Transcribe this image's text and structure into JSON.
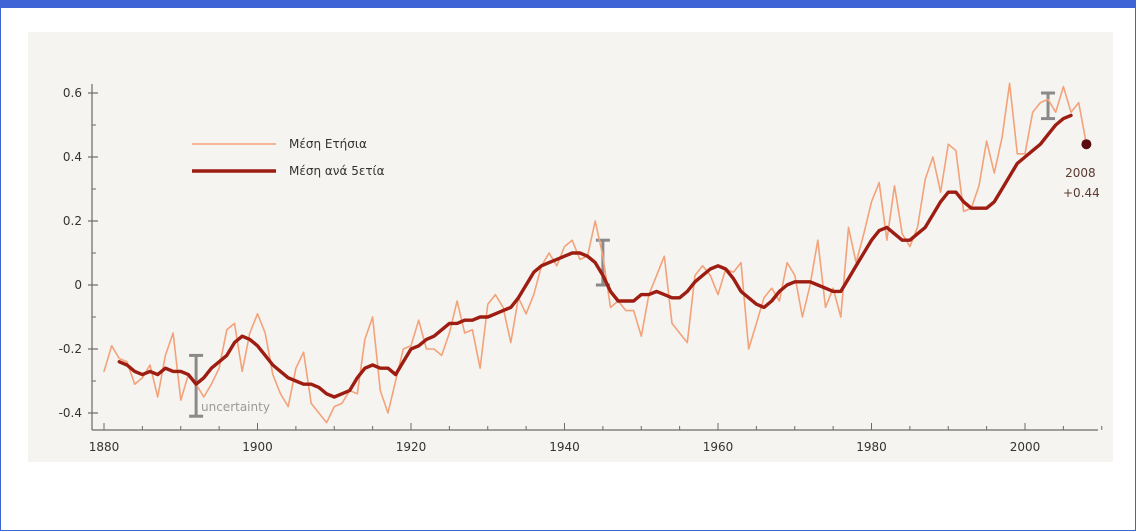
{
  "chart_data": {
    "type": "line",
    "title": "",
    "xlabel": "",
    "ylabel": "",
    "xlim": [
      1880,
      2010
    ],
    "ylim": [
      -0.43,
      0.65
    ],
    "x_ticks": [
      1880,
      1900,
      1920,
      1940,
      1960,
      1980,
      2000
    ],
    "x_tick_labels": [
      "1880",
      "1900",
      "1920",
      "1940",
      "1960",
      "1980",
      "2000"
    ],
    "y_ticks": [
      -0.4,
      -0.2,
      0,
      0.2,
      0.4,
      0.6
    ],
    "y_tick_labels": [
      "-0.4",
      "-0.2",
      "0",
      "0.2",
      "0.4",
      "0.6"
    ],
    "grid": false,
    "legend_position": "top-left",
    "series": [
      {
        "name": "Μέση Ετήσια",
        "color": "#f3a27a",
        "x": [
          1880,
          1881,
          1882,
          1883,
          1884,
          1885,
          1886,
          1887,
          1888,
          1889,
          1890,
          1891,
          1892,
          1893,
          1894,
          1895,
          1896,
          1897,
          1898,
          1899,
          1900,
          1901,
          1902,
          1903,
          1904,
          1905,
          1906,
          1907,
          1908,
          1909,
          1910,
          1911,
          1912,
          1913,
          1914,
          1915,
          1916,
          1917,
          1918,
          1919,
          1920,
          1921,
          1922,
          1923,
          1924,
          1925,
          1926,
          1927,
          1928,
          1929,
          1930,
          1931,
          1932,
          1933,
          1934,
          1935,
          1936,
          1937,
          1938,
          1939,
          1940,
          1941,
          1942,
          1943,
          1944,
          1945,
          1946,
          1947,
          1948,
          1949,
          1950,
          1951,
          1952,
          1953,
          1954,
          1955,
          1956,
          1957,
          1958,
          1959,
          1960,
          1961,
          1962,
          1963,
          1964,
          1965,
          1966,
          1967,
          1968,
          1969,
          1970,
          1971,
          1972,
          1973,
          1974,
          1975,
          1976,
          1977,
          1978,
          1979,
          1980,
          1981,
          1982,
          1983,
          1984,
          1985,
          1986,
          1987,
          1988,
          1989,
          1990,
          1991,
          1992,
          1993,
          1994,
          1995,
          1996,
          1997,
          1998,
          1999,
          2000,
          2001,
          2002,
          2003,
          2004,
          2005,
          2006,
          2007,
          2008
        ],
        "values": [
          -0.27,
          -0.19,
          -0.23,
          -0.24,
          -0.31,
          -0.29,
          -0.25,
          -0.35,
          -0.22,
          -0.15,
          -0.36,
          -0.28,
          -0.31,
          -0.35,
          -0.31,
          -0.26,
          -0.14,
          -0.12,
          -0.27,
          -0.15,
          -0.09,
          -0.15,
          -0.28,
          -0.34,
          -0.38,
          -0.26,
          -0.21,
          -0.37,
          -0.4,
          -0.43,
          -0.38,
          -0.37,
          -0.33,
          -0.34,
          -0.17,
          -0.1,
          -0.33,
          -0.4,
          -0.3,
          -0.2,
          -0.19,
          -0.11,
          -0.2,
          -0.2,
          -0.22,
          -0.15,
          -0.05,
          -0.15,
          -0.14,
          -0.26,
          -0.06,
          -0.03,
          -0.07,
          -0.18,
          -0.04,
          -0.09,
          -0.03,
          0.06,
          0.1,
          0.06,
          0.12,
          0.14,
          0.08,
          0.09,
          0.2,
          0.09,
          -0.07,
          -0.05,
          -0.08,
          -0.08,
          -0.16,
          -0.03,
          0.03,
          0.09,
          -0.12,
          -0.15,
          -0.18,
          0.03,
          0.06,
          0.03,
          -0.03,
          0.05,
          0.04,
          0.07,
          -0.2,
          -0.12,
          -0.04,
          -0.01,
          -0.05,
          0.07,
          0.03,
          -0.1,
          0.0,
          0.14,
          -0.07,
          -0.01,
          -0.1,
          0.18,
          0.07,
          0.16,
          0.26,
          0.32,
          0.14,
          0.31,
          0.16,
          0.12,
          0.18,
          0.33,
          0.4,
          0.29,
          0.44,
          0.42,
          0.23,
          0.24,
          0.31,
          0.45,
          0.35,
          0.46,
          0.63,
          0.41,
          0.41,
          0.54,
          0.57,
          0.58,
          0.54,
          0.62,
          0.54,
          0.57,
          0.44
        ]
      },
      {
        "name": "Μέση ανά 5ετία",
        "color": "#9e1d12",
        "x": [
          1882,
          1883,
          1884,
          1885,
          1886,
          1887,
          1888,
          1889,
          1890,
          1891,
          1892,
          1893,
          1894,
          1895,
          1896,
          1897,
          1898,
          1899,
          1900,
          1901,
          1902,
          1903,
          1904,
          1905,
          1906,
          1907,
          1908,
          1909,
          1910,
          1911,
          1912,
          1913,
          1914,
          1915,
          1916,
          1917,
          1918,
          1919,
          1920,
          1921,
          1922,
          1923,
          1924,
          1925,
          1926,
          1927,
          1928,
          1929,
          1930,
          1931,
          1932,
          1933,
          1934,
          1935,
          1936,
          1937,
          1938,
          1939,
          1940,
          1941,
          1942,
          1943,
          1944,
          1945,
          1946,
          1947,
          1948,
          1949,
          1950,
          1951,
          1952,
          1953,
          1954,
          1955,
          1956,
          1957,
          1958,
          1959,
          1960,
          1961,
          1962,
          1963,
          1964,
          1965,
          1966,
          1967,
          1968,
          1969,
          1970,
          1971,
          1972,
          1973,
          1974,
          1975,
          1976,
          1977,
          1978,
          1979,
          1980,
          1981,
          1982,
          1983,
          1984,
          1985,
          1986,
          1987,
          1988,
          1989,
          1990,
          1991,
          1992,
          1993,
          1994,
          1995,
          1996,
          1997,
          1998,
          1999,
          2000,
          2001,
          2002,
          2003,
          2004,
          2005,
          2006
        ],
        "values": [
          -0.24,
          -0.25,
          -0.27,
          -0.28,
          -0.27,
          -0.28,
          -0.26,
          -0.27,
          -0.27,
          -0.28,
          -0.31,
          -0.29,
          -0.26,
          -0.24,
          -0.22,
          -0.18,
          -0.16,
          -0.17,
          -0.19,
          -0.22,
          -0.25,
          -0.27,
          -0.29,
          -0.3,
          -0.31,
          -0.31,
          -0.32,
          -0.34,
          -0.35,
          -0.34,
          -0.33,
          -0.29,
          -0.26,
          -0.25,
          -0.26,
          -0.26,
          -0.28,
          -0.24,
          -0.2,
          -0.19,
          -0.17,
          -0.16,
          -0.14,
          -0.12,
          -0.12,
          -0.11,
          -0.11,
          -0.1,
          -0.1,
          -0.09,
          -0.08,
          -0.07,
          -0.04,
          0.0,
          0.04,
          0.06,
          0.07,
          0.08,
          0.09,
          0.1,
          0.1,
          0.09,
          0.07,
          0.03,
          -0.02,
          -0.05,
          -0.05,
          -0.05,
          -0.03,
          -0.03,
          -0.02,
          -0.03,
          -0.04,
          -0.04,
          -0.02,
          0.01,
          0.03,
          0.05,
          0.06,
          0.05,
          0.02,
          -0.02,
          -0.04,
          -0.06,
          -0.07,
          -0.05,
          -0.02,
          0.0,
          0.01,
          0.01,
          0.01,
          0.0,
          -0.01,
          -0.02,
          -0.02,
          0.02,
          0.06,
          0.1,
          0.14,
          0.17,
          0.18,
          0.16,
          0.14,
          0.14,
          0.16,
          0.18,
          0.22,
          0.26,
          0.29,
          0.29,
          0.26,
          0.24,
          0.24,
          0.24,
          0.26,
          0.3,
          0.34,
          0.38,
          0.4,
          0.42,
          0.44,
          0.47,
          0.5,
          0.52,
          0.53
        ]
      }
    ],
    "error_bars": [
      {
        "x": 1892,
        "low": -0.41,
        "high": -0.22
      },
      {
        "x": 1945,
        "low": 0.0,
        "high": 0.14
      },
      {
        "x": 2003,
        "low": 0.52,
        "high": 0.6
      }
    ],
    "highlight_point": {
      "x": 2008,
      "y": 0.44,
      "color": "#5a0c10"
    },
    "annotations": [
      {
        "text": "uncertainty",
        "color": "#9a9a9a"
      },
      {
        "text": "2008",
        "color": "#5a3a30"
      },
      {
        "text": "+0.44",
        "color": "#5a3a30"
      }
    ]
  }
}
